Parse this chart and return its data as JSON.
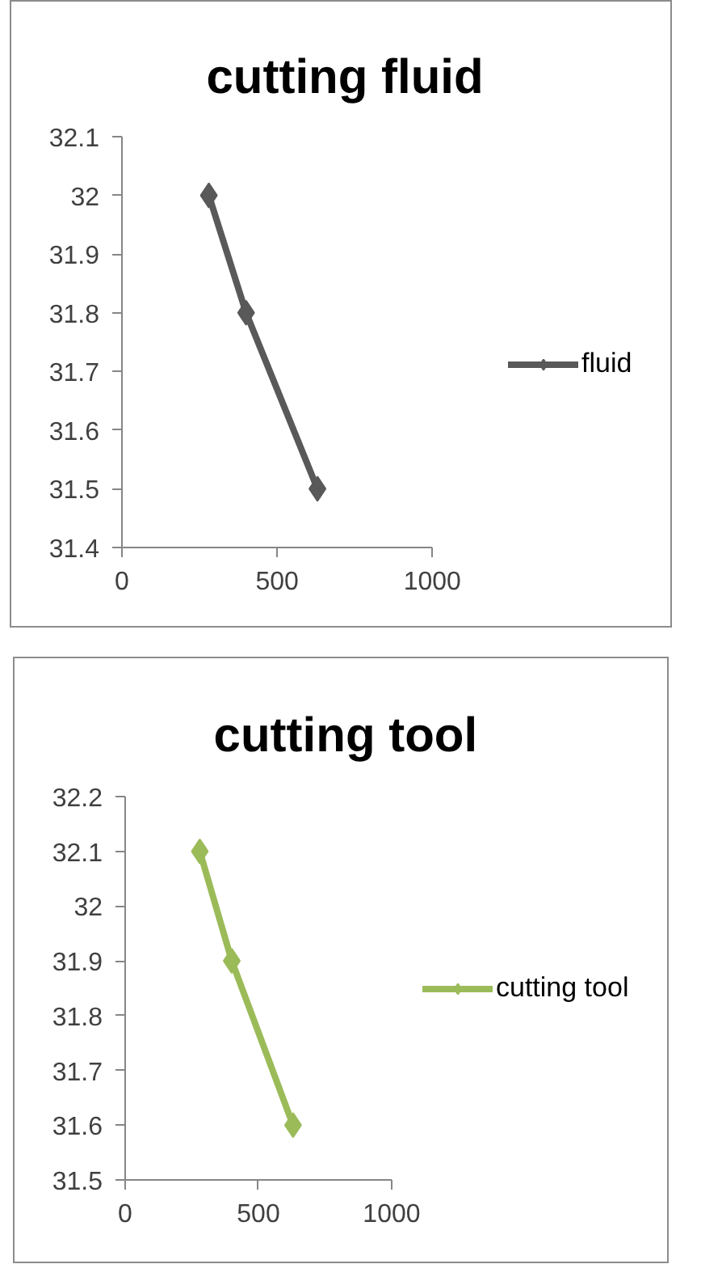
{
  "chart_data": [
    {
      "type": "line",
      "title": "cutting fluid",
      "x": [
        280,
        400,
        630
      ],
      "series": [
        {
          "name": "fluid",
          "color": "#595959",
          "values": [
            32,
            31.8,
            31.5
          ]
        }
      ],
      "xlim": [
        0,
        1000
      ],
      "xticks": [
        0,
        500,
        1000
      ],
      "ylim": [
        31.4,
        32.1
      ],
      "yticks": [
        31.4,
        31.5,
        31.6,
        31.7,
        31.8,
        31.9,
        32,
        32.1
      ],
      "marker": "diamond",
      "line_style": "solid",
      "legend": "right",
      "grid": false
    },
    {
      "type": "line",
      "title": "cutting tool",
      "x": [
        280,
        400,
        630
      ],
      "series": [
        {
          "name": "cutting tool",
          "color": "#9bbb59",
          "values": [
            32.1,
            31.9,
            31.6
          ]
        }
      ],
      "xlim": [
        0,
        1000
      ],
      "xticks": [
        0,
        500,
        1000
      ],
      "ylim": [
        31.5,
        32.2
      ],
      "yticks": [
        31.5,
        31.6,
        31.7,
        31.8,
        31.9,
        32,
        32.1,
        32.2
      ],
      "marker": "diamond",
      "line_style": "solid",
      "legend": "right",
      "grid": false
    }
  ]
}
